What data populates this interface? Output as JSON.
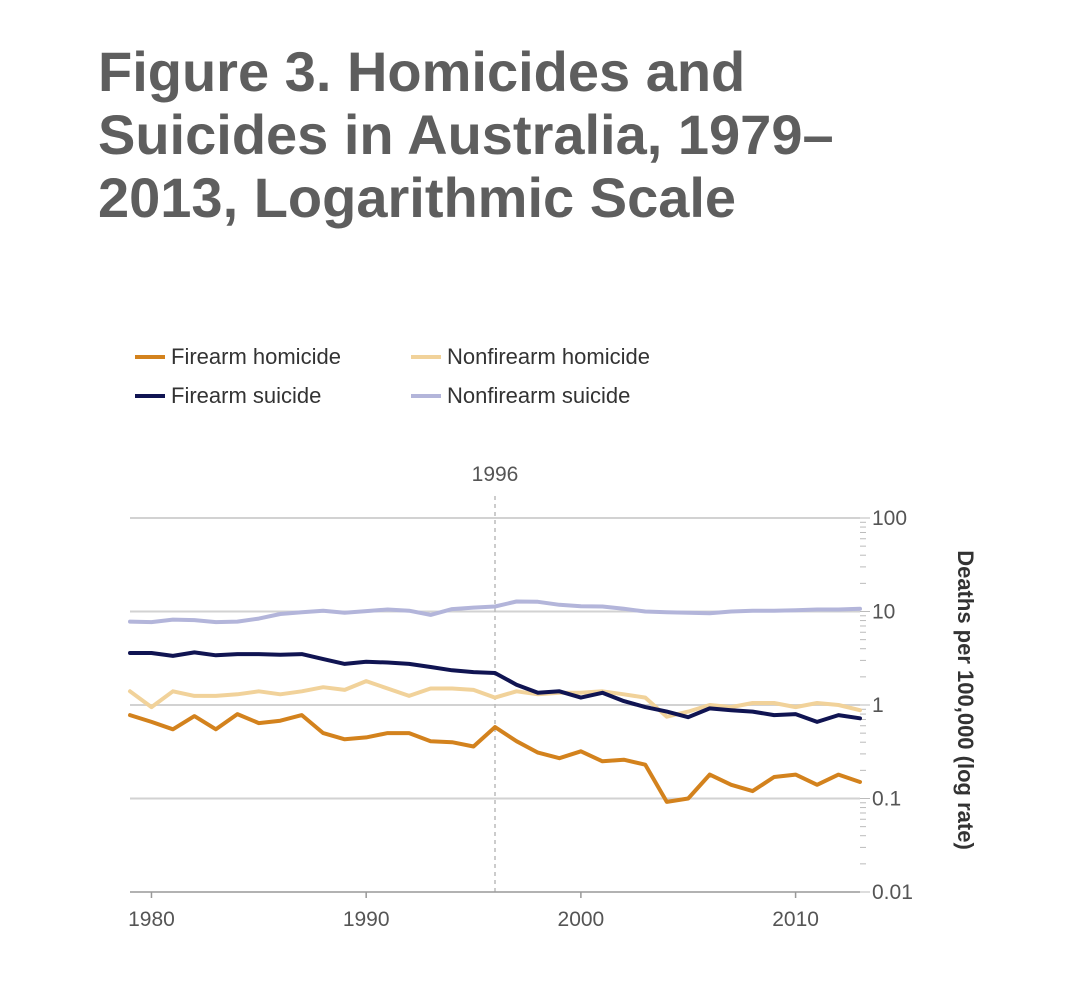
{
  "title": "Figure 3. Homicides and Suicides in Australia, 1979–2013, Logarithmic Scale",
  "chart_data": {
    "type": "line",
    "title": "Figure 3. Homicides and Suicides in Australia, 1979–2013, Logarithmic Scale",
    "xlabel": "",
    "ylabel": "Deaths per 100,000 (log rate)",
    "yscale": "log",
    "xlim": [
      1979,
      2013
    ],
    "ylim": [
      0.01,
      100
    ],
    "x_ticks": [
      "1980",
      "1990",
      "2000",
      "2010"
    ],
    "y_ticks": [
      "100",
      "10",
      "1",
      "0.1",
      "0.01"
    ],
    "grid": true,
    "legend_position": "top-left",
    "annotation": {
      "x": 1996,
      "label": "1996"
    },
    "x": [
      1979,
      1980,
      1981,
      1982,
      1983,
      1984,
      1985,
      1986,
      1987,
      1988,
      1989,
      1990,
      1991,
      1992,
      1993,
      1994,
      1995,
      1996,
      1997,
      1998,
      1999,
      2000,
      2001,
      2002,
      2003,
      2004,
      2005,
      2006,
      2007,
      2008,
      2009,
      2010,
      2011,
      2012,
      2013
    ],
    "series": [
      {
        "name": "Firearm homicide",
        "color": "#d3821d",
        "values": [
          0.78,
          0.66,
          0.55,
          0.76,
          0.55,
          0.8,
          0.64,
          0.68,
          0.78,
          0.5,
          0.43,
          0.45,
          0.5,
          0.5,
          0.41,
          0.4,
          0.36,
          0.58,
          0.41,
          0.31,
          0.27,
          0.32,
          0.25,
          0.26,
          0.23,
          0.092,
          0.1,
          0.18,
          0.14,
          0.12,
          0.17,
          0.18,
          0.14,
          0.18,
          0.15
        ]
      },
      {
        "name": "Nonfirearm homicide",
        "color": "#f1d29a",
        "values": [
          1.4,
          0.95,
          1.4,
          1.25,
          1.25,
          1.3,
          1.4,
          1.3,
          1.4,
          1.55,
          1.45,
          1.8,
          1.5,
          1.25,
          1.5,
          1.5,
          1.45,
          1.2,
          1.4,
          1.3,
          1.35,
          1.35,
          1.4,
          1.3,
          1.2,
          0.75,
          0.85,
          1.0,
          0.95,
          1.05,
          1.05,
          0.95,
          1.05,
          1.0,
          0.88
        ]
      },
      {
        "name": "Firearm suicide",
        "color": "#101452",
        "values": [
          3.6,
          3.6,
          3.35,
          3.65,
          3.4,
          3.5,
          3.5,
          3.45,
          3.5,
          3.1,
          2.75,
          2.9,
          2.85,
          2.75,
          2.55,
          2.35,
          2.25,
          2.2,
          1.65,
          1.35,
          1.4,
          1.2,
          1.35,
          1.1,
          0.95,
          0.85,
          0.74,
          0.92,
          0.88,
          0.85,
          0.78,
          0.8,
          0.66,
          0.78,
          0.72
        ]
      },
      {
        "name": "Nonfirearm suicide",
        "color": "#b3b5da",
        "values": [
          7.8,
          7.7,
          8.2,
          8.1,
          7.7,
          7.8,
          8.4,
          9.4,
          9.8,
          10.2,
          9.7,
          10.1,
          10.5,
          10.2,
          9.2,
          10.6,
          11.0,
          11.3,
          12.8,
          12.7,
          11.8,
          11.4,
          11.3,
          10.7,
          10.0,
          9.8,
          9.7,
          9.6,
          10.0,
          10.2,
          10.2,
          10.3,
          10.5,
          10.5,
          10.7
        ]
      }
    ]
  }
}
